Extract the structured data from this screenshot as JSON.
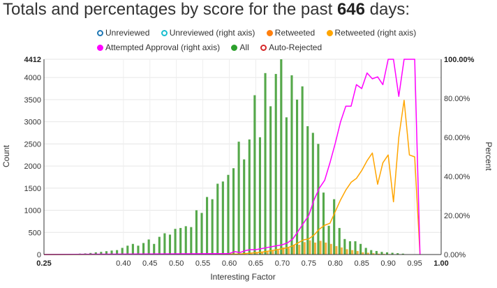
{
  "title": {
    "prefix": "Totals and percentages by score for the past",
    "days": "646",
    "suffix": "days:"
  },
  "chart_data": {
    "type": "bar",
    "xlabel": "Interesting Factor",
    "ylabel_left": "Count",
    "ylabel_right": "Percent",
    "xlim": [
      0.25,
      1.0
    ],
    "ylim_left": [
      0,
      4412
    ],
    "ylim_right": [
      0,
      100
    ],
    "x_ticks": [
      "0.25",
      "0.40",
      "0.45",
      "0.50",
      "0.55",
      "0.60",
      "0.65",
      "0.70",
      "0.75",
      "0.80",
      "0.85",
      "0.90",
      "0.95",
      "1.00"
    ],
    "y_ticks_left": [
      "0",
      "500",
      "1000",
      "1500",
      "2000",
      "2500",
      "3000",
      "3500",
      "4000",
      "4412"
    ],
    "y_ticks_right": [
      "0.00%",
      "20.00%",
      "40.00%",
      "60.00%",
      "80.00%",
      "100.00%"
    ],
    "grid": true,
    "legend_position": "top",
    "legend": [
      {
        "label": "Unreviewed",
        "color": "#1f77b4",
        "style": "hollow"
      },
      {
        "label": "Unreviewed (right axis)",
        "color": "#17becf",
        "style": "hollow"
      },
      {
        "label": "Retweeted",
        "color": "#ff7f0e",
        "style": "filled"
      },
      {
        "label": "Retweeted (right axis)",
        "color": "#ffa500",
        "style": "filled"
      },
      {
        "label": "Attempted Approval (right axis)",
        "color": "#ff00ff",
        "style": "filled"
      },
      {
        "label": "All",
        "color": "#2ca02c",
        "style": "filled"
      },
      {
        "label": "Auto-Rejected",
        "color": "#d62728",
        "style": "hollow"
      }
    ],
    "all_counts": {
      "name": "All",
      "color": "#55a84a",
      "x": [
        0.3,
        0.32,
        0.33,
        0.34,
        0.35,
        0.36,
        0.37,
        0.38,
        0.39,
        0.4,
        0.41,
        0.42,
        0.43,
        0.44,
        0.45,
        0.46,
        0.47,
        0.48,
        0.49,
        0.5,
        0.51,
        0.52,
        0.53,
        0.54,
        0.55,
        0.56,
        0.57,
        0.58,
        0.59,
        0.6,
        0.61,
        0.62,
        0.63,
        0.64,
        0.65,
        0.66,
        0.67,
        0.68,
        0.69,
        0.7,
        0.71,
        0.72,
        0.73,
        0.74,
        0.75,
        0.76,
        0.77,
        0.78,
        0.79,
        0.8,
        0.81,
        0.82,
        0.83,
        0.84,
        0.85,
        0.86,
        0.87,
        0.88,
        0.89,
        0.9,
        0.91,
        0.92,
        0.93
      ],
      "values": [
        10,
        20,
        25,
        35,
        50,
        60,
        75,
        90,
        100,
        150,
        200,
        240,
        200,
        260,
        340,
        240,
        400,
        480,
        450,
        580,
        600,
        640,
        620,
        1000,
        940,
        1300,
        1250,
        1600,
        1650,
        1800,
        1950,
        2550,
        2150,
        2600,
        3600,
        2650,
        4100,
        3350,
        4080,
        4412,
        3100,
        4050,
        3500,
        3800,
        2900,
        2750,
        2500,
        1400,
        650,
        1250,
        600,
        350,
        300,
        300,
        240,
        150,
        100,
        80,
        60,
        50,
        40,
        30,
        20
      ]
    },
    "retweeted_counts": {
      "name": "Retweeted",
      "color": "#ff7f0e",
      "x": [
        0.63,
        0.64,
        0.65,
        0.66,
        0.67,
        0.68,
        0.69,
        0.7,
        0.71,
        0.72,
        0.73,
        0.74,
        0.75,
        0.76,
        0.77,
        0.78,
        0.79,
        0.8,
        0.81,
        0.82,
        0.83,
        0.84,
        0.85,
        0.86,
        0.87,
        0.88,
        0.89,
        0.9,
        0.91,
        0.92,
        0.93
      ],
      "values": [
        10,
        20,
        30,
        50,
        60,
        80,
        100,
        160,
        150,
        210,
        220,
        280,
        320,
        270,
        310,
        270,
        240,
        190,
        160,
        120,
        100,
        80,
        50,
        40,
        30,
        20,
        15,
        10,
        8,
        6,
        4
      ]
    },
    "attempted_approval_pct": {
      "name": "Attempted Approval (right axis)",
      "color": "#ff00ff",
      "x": [
        0.25,
        0.6,
        0.61,
        0.62,
        0.63,
        0.64,
        0.65,
        0.66,
        0.67,
        0.68,
        0.69,
        0.7,
        0.71,
        0.72,
        0.73,
        0.74,
        0.75,
        0.76,
        0.77,
        0.78,
        0.79,
        0.8,
        0.81,
        0.82,
        0.83,
        0.84,
        0.85,
        0.86,
        0.87,
        0.88,
        0.89,
        0.9,
        0.91,
        0.92,
        0.93,
        0.94,
        0.95,
        0.96
      ],
      "values": [
        0,
        0.5,
        1.5,
        1.0,
        2.0,
        2.5,
        2.5,
        3.0,
        3.5,
        4.0,
        4.5,
        5.0,
        6.0,
        8.0,
        12.0,
        16.0,
        20.0,
        28.0,
        34.0,
        38.0,
        47.0,
        57.0,
        68.0,
        76.0,
        76.0,
        87.0,
        85.0,
        93.0,
        90.0,
        91.0,
        87.0,
        100.0,
        100.0,
        81.0,
        100.0,
        100.0,
        100.0,
        0
      ]
    },
    "retweeted_pct": {
      "name": "Retweeted (right axis)",
      "color": "#ffa500",
      "x": [
        0.25,
        0.62,
        0.64,
        0.66,
        0.68,
        0.7,
        0.71,
        0.72,
        0.73,
        0.74,
        0.75,
        0.76,
        0.77,
        0.78,
        0.79,
        0.8,
        0.81,
        0.82,
        0.83,
        0.84,
        0.85,
        0.86,
        0.87,
        0.88,
        0.89,
        0.9,
        0.91,
        0.92,
        0.93,
        0.94,
        0.95,
        0.96
      ],
      "values": [
        0,
        0.3,
        0.7,
        1.2,
        2.0,
        3.0,
        3.5,
        4.5,
        6.0,
        7.5,
        8.0,
        10.0,
        13.0,
        15.0,
        16.0,
        22.0,
        28.0,
        33.0,
        37.0,
        39.0,
        43.0,
        48.0,
        52.0,
        36.0,
        47.0,
        51.0,
        27.0,
        60.0,
        79.0,
        51.0,
        50.0,
        0
      ]
    }
  }
}
